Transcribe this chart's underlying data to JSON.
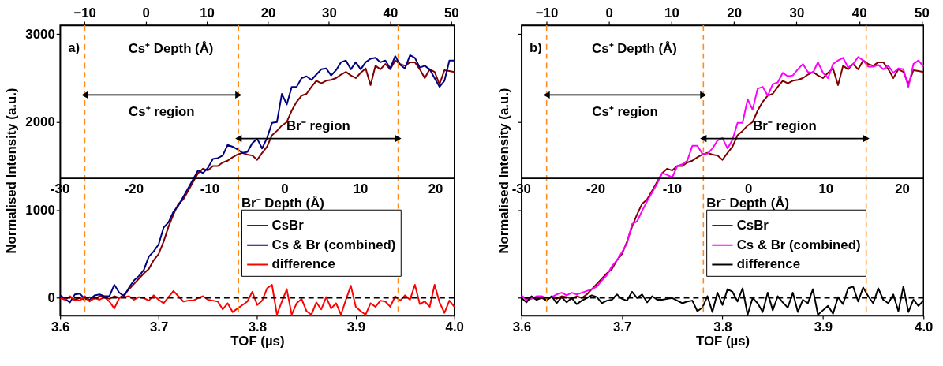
{
  "chart_data": [
    {
      "type": "line",
      "xlabel": "TOF (µs)",
      "ylabel": "Normalised Intensity (a.u.)",
      "x2label": "Cs⁺ Depth (Å)",
      "xlim": [
        3.6,
        4.0
      ],
      "xticks": [
        3.6,
        3.7,
        3.8,
        3.9,
        {
          "value": 4.0,
          "label": "4.0"
        }
      ],
      "ylim": [
        -200,
        3100
      ],
      "yticks": [
        0,
        1000,
        2000,
        3000
      ],
      "x2lim": [
        -14,
        50.5
      ],
      "x2ticks": [
        -10,
        0,
        10,
        20,
        30,
        40,
        50
      ],
      "legend": "bottom right",
      "grid": false,
      "annotations": [
        "a)",
        "Cs⁺ region",
        "Br⁻ region",
        {
          "text": "-30",
          "x": 3.6,
          "y": 1360
        },
        {
          "text": "-20",
          "x": 3.675,
          "y": 1360
        },
        {
          "text": "-10",
          "x": 3.752,
          "y": 1360
        },
        {
          "text": "0",
          "x": 3.828,
          "y": 1360
        },
        {
          "text": "10",
          "x": 3.905,
          "y": 1360
        },
        {
          "text": "20",
          "x": 3.981,
          "y": 1360
        }
      ],
      "ref_lines": [
        {
          "axis": "x",
          "value": 3.625,
          "color": "#ff8c1a",
          "line_style": "dashed"
        },
        {
          "axis": "x",
          "value": 3.781,
          "color": "#ff8c1a",
          "line_style": "dashed"
        },
        {
          "axis": "x",
          "value": 3.943,
          "color": "#ff8c1a",
          "line_style": "dashed"
        },
        {
          "axis": "y",
          "value": 0,
          "color": "#000000",
          "line_style": "dashed"
        },
        {
          "axis": "y",
          "value": 1360,
          "color": "#000000",
          "line_style": "solid",
          "label": "Br⁻ Depth (Å)"
        }
      ],
      "x": [
        3.6,
        3.605,
        3.61,
        3.615,
        3.62,
        3.625,
        3.63,
        3.635,
        3.64,
        3.645,
        3.65,
        3.655,
        3.66,
        3.665,
        3.67,
        3.675,
        3.68,
        3.685,
        3.69,
        3.695,
        3.7,
        3.705,
        3.71,
        3.715,
        3.72,
        3.725,
        3.73,
        3.735,
        3.74,
        3.745,
        3.75,
        3.755,
        3.76,
        3.765,
        3.77,
        3.775,
        3.78,
        3.785,
        3.79,
        3.795,
        3.8,
        3.805,
        3.81,
        3.815,
        3.82,
        3.825,
        3.83,
        3.835,
        3.84,
        3.845,
        3.85,
        3.855,
        3.86,
        3.865,
        3.87,
        3.875,
        3.88,
        3.885,
        3.89,
        3.895,
        3.9,
        3.905,
        3.91,
        3.915,
        3.92,
        3.925,
        3.93,
        3.935,
        3.94,
        3.945,
        3.95,
        3.955,
        3.96,
        3.965,
        3.97,
        3.975,
        3.98,
        3.985,
        3.99,
        3.995,
        4.0
      ],
      "series": [
        {
          "name": "CsBr",
          "color": "#800000",
          "values": [
            20,
            -10,
            10,
            -20,
            0,
            -20,
            10,
            -10,
            20,
            10,
            -10,
            20,
            0,
            40,
            100,
            160,
            220,
            280,
            330,
            430,
            500,
            640,
            810,
            950,
            1070,
            1120,
            1220,
            1320,
            1420,
            1470,
            1450,
            1500,
            1500,
            1540,
            1560,
            1600,
            1630,
            1650,
            1630,
            1620,
            1570,
            1650,
            1720,
            1850,
            1900,
            1960,
            2000,
            2130,
            2230,
            2300,
            2320,
            2400,
            2470,
            2440,
            2470,
            2480,
            2500,
            2540,
            2570,
            2530,
            2500,
            2560,
            2610,
            2420,
            2640,
            2600,
            2660,
            2600,
            2700,
            2660,
            2640,
            2680,
            2680,
            2600,
            2500,
            2600,
            2570,
            2430,
            2590,
            2580,
            2570
          ]
        },
        {
          "name": "Cs & Br (combined)",
          "color": "#000080",
          "values": [
            30,
            -10,
            -50,
            40,
            50,
            -10,
            -20,
            30,
            40,
            20,
            20,
            150,
            60,
            20,
            120,
            200,
            250,
            320,
            470,
            530,
            610,
            800,
            860,
            980,
            1050,
            1150,
            1250,
            1350,
            1450,
            1420,
            1480,
            1580,
            1590,
            1620,
            1740,
            1720,
            1690,
            1650,
            1660,
            1760,
            1810,
            1700,
            1820,
            1990,
            2000,
            2320,
            2200,
            2400,
            2400,
            2500,
            2520,
            2480,
            2540,
            2600,
            2610,
            2530,
            2590,
            2680,
            2700,
            2600,
            2680,
            2600,
            2680,
            2720,
            2730,
            2680,
            2700,
            2610,
            2750,
            2650,
            2610,
            2760,
            2730,
            2620,
            2640,
            2600,
            2500,
            2400,
            2470,
            2700,
            2700
          ]
        },
        {
          "name": "difference",
          "color": "#ff0000",
          "values": [
            0,
            -20,
            20,
            -30,
            -30,
            20,
            -40,
            0,
            -20,
            10,
            -40,
            -120,
            0,
            10,
            20,
            -20,
            10,
            0,
            -30,
            30,
            -20,
            -60,
            10,
            80,
            20,
            -40,
            -30,
            -30,
            0,
            20,
            -20,
            -30,
            -40,
            -130,
            -60,
            -160,
            -120,
            -80,
            -40,
            70,
            -80,
            -30,
            110,
            150,
            -190,
            -40,
            100,
            -190,
            -60,
            -10,
            -150,
            -190,
            -50,
            -130,
            10,
            -120,
            -60,
            -190,
            -20,
            140,
            -100,
            -150,
            -190,
            -60,
            -100,
            -30,
            -40,
            -100,
            20,
            -30,
            30,
            -20,
            150,
            -70,
            -40,
            -100,
            150,
            -50,
            -170,
            -30,
            -100
          ]
        }
      ]
    },
    {
      "type": "line",
      "xlabel": "TOF (µs)",
      "ylabel": "Normalised Intensity (a.u.)",
      "x2label": "Cs⁺ Depth (Å)",
      "xlim": [
        3.6,
        4.0
      ],
      "xticks": [
        3.6,
        3.7,
        3.8,
        3.9,
        {
          "value": 4.0,
          "label": "4.0"
        }
      ],
      "ylim": [
        -200,
        3100
      ],
      "yticks": [
        0,
        1000,
        2000,
        3000
      ],
      "x2lim": [
        -14,
        50.3
      ],
      "x2ticks": [
        -10,
        0,
        10,
        20,
        30,
        40,
        50
      ],
      "legend": "bottom right",
      "grid": false,
      "tick_labels": "x",
      "annotations": [
        "b)",
        "Cs⁺ region",
        "Br⁻ region",
        {
          "text": "-30",
          "x": 3.6,
          "y": 1360
        },
        {
          "text": "-20",
          "x": 3.674,
          "y": 1360
        },
        {
          "text": "-10",
          "x": 3.75,
          "y": 1360
        },
        {
          "text": "0",
          "x": 3.826,
          "y": 1360
        },
        {
          "text": "10",
          "x": 3.903,
          "y": 1360
        },
        {
          "text": "20",
          "x": 3.979,
          "y": 1360
        }
      ],
      "ref_lines": [
        {
          "axis": "x",
          "value": 3.625,
          "color": "#ff8c1a",
          "line_style": "dashed"
        },
        {
          "axis": "x",
          "value": 3.781,
          "color": "#ff8c1a",
          "line_style": "dashed"
        },
        {
          "axis": "x",
          "value": 3.943,
          "color": "#ff8c1a",
          "line_style": "dashed"
        },
        {
          "axis": "y",
          "value": 0,
          "color": "#000000",
          "line_style": "dashed"
        },
        {
          "axis": "y",
          "value": 1360,
          "color": "#000000",
          "line_style": "solid",
          "label": "Br⁻ Depth (Å)"
        }
      ],
      "x": [
        3.6,
        3.605,
        3.61,
        3.615,
        3.62,
        3.625,
        3.63,
        3.635,
        3.64,
        3.645,
        3.65,
        3.655,
        3.66,
        3.665,
        3.67,
        3.675,
        3.68,
        3.685,
        3.69,
        3.695,
        3.7,
        3.705,
        3.71,
        3.715,
        3.72,
        3.725,
        3.73,
        3.735,
        3.74,
        3.745,
        3.75,
        3.755,
        3.76,
        3.765,
        3.77,
        3.775,
        3.78,
        3.785,
        3.79,
        3.795,
        3.8,
        3.805,
        3.81,
        3.815,
        3.82,
        3.825,
        3.83,
        3.835,
        3.84,
        3.845,
        3.85,
        3.855,
        3.86,
        3.865,
        3.87,
        3.875,
        3.88,
        3.885,
        3.89,
        3.895,
        3.9,
        3.905,
        3.91,
        3.915,
        3.92,
        3.925,
        3.93,
        3.935,
        3.94,
        3.945,
        3.95,
        3.955,
        3.96,
        3.965,
        3.97,
        3.975,
        3.98,
        3.985,
        3.99,
        3.995,
        4.0
      ],
      "series": [
        {
          "name": "CsBr",
          "color": "#800000",
          "values": [
            20,
            -10,
            10,
            -20,
            0,
            -20,
            10,
            -10,
            20,
            10,
            -10,
            20,
            0,
            40,
            100,
            160,
            220,
            280,
            330,
            430,
            500,
            640,
            810,
            950,
            1070,
            1120,
            1220,
            1320,
            1420,
            1470,
            1450,
            1500,
            1500,
            1540,
            1560,
            1600,
            1630,
            1650,
            1630,
            1620,
            1570,
            1650,
            1720,
            1850,
            1900,
            1960,
            2000,
            2130,
            2230,
            2300,
            2320,
            2400,
            2470,
            2440,
            2470,
            2480,
            2500,
            2540,
            2570,
            2530,
            2500,
            2560,
            2610,
            2420,
            2640,
            2600,
            2660,
            2600,
            2700,
            2660,
            2640,
            2680,
            2680,
            2600,
            2500,
            2600,
            2570,
            2430,
            2590,
            2580,
            2570
          ]
        },
        {
          "name": "Cs & Br (combined)",
          "color": "#ff00ff",
          "values": [
            30,
            -20,
            -10,
            20,
            20,
            0,
            10,
            40,
            60,
            30,
            60,
            40,
            60,
            80,
            100,
            130,
            200,
            260,
            360,
            430,
            520,
            620,
            840,
            870,
            990,
            1100,
            1200,
            1300,
            1420,
            1400,
            1370,
            1500,
            1520,
            1560,
            1730,
            1730,
            1640,
            1640,
            1700,
            1790,
            1820,
            1700,
            1800,
            1990,
            1990,
            2260,
            2140,
            2380,
            2400,
            2300,
            2430,
            2450,
            2560,
            2520,
            2530,
            2600,
            2660,
            2570,
            2560,
            2680,
            2560,
            2500,
            2660,
            2700,
            2730,
            2620,
            2660,
            2740,
            2700,
            2630,
            2630,
            2650,
            2600,
            2640,
            2560,
            2610,
            2600,
            2400,
            2660,
            2700,
            2630
          ]
        },
        {
          "name": "difference",
          "color": "#000000",
          "values": [
            0,
            -50,
            20,
            -20,
            10,
            -30,
            20,
            -60,
            10,
            -50,
            0,
            -70,
            -30,
            0,
            30,
            10,
            -60,
            -30,
            -20,
            40,
            -10,
            -30,
            70,
            0,
            40,
            -50,
            20,
            -20,
            -20,
            -10,
            0,
            -30,
            -60,
            -40,
            -30,
            -150,
            -110,
            20,
            -160,
            60,
            -80,
            100,
            70,
            -40,
            110,
            -190,
            0,
            -60,
            -160,
            60,
            -140,
            20,
            -50,
            -110,
            60,
            -160,
            -20,
            -60,
            100,
            -190,
            -140,
            -90,
            -180,
            10,
            -70,
            110,
            130,
            -40,
            120,
            20,
            -60,
            110,
            -20,
            -60,
            40,
            -150,
            130,
            -160,
            -20,
            -90,
            -30
          ]
        }
      ]
    }
  ]
}
